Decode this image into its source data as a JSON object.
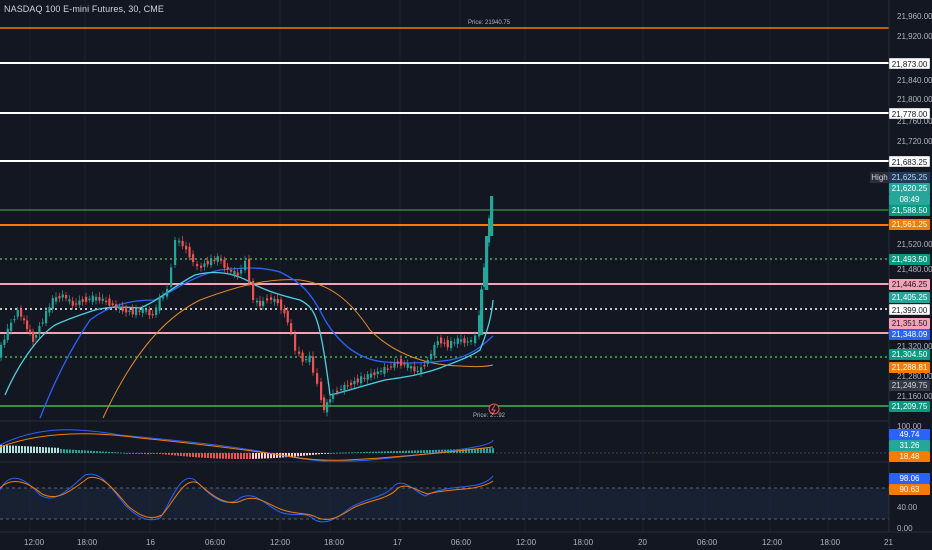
{
  "title": "NASDAQ 100 E-mini Futures, 30, CME",
  "price_axis_labels": [
    "21,960.00",
    "21,920.00",
    "21,840.00",
    "21,800.00",
    "21,760.00",
    "21,720.00",
    "21,520.00",
    "21,480.00",
    "21,320.00",
    "21,280.00",
    "21,160.00"
  ],
  "price_tags": {
    "t21873": "21,873.00",
    "t21778": "21,778.00",
    "t21683": "21,683.25",
    "high": "High",
    "t21625": "21,625.25",
    "t21620": "21,620.25",
    "countdown": "08:49",
    "t21588": "21,588.50",
    "t21561": "21,561.25",
    "t21493": "21,493.50",
    "t21446": "21,446.25",
    "t21405": "21,405.25",
    "t21399": "21,399.00",
    "t21351": "21,351.50",
    "t21348": "21,348.09",
    "t21304": "21,304.50",
    "t21288": "21,288.81",
    "t21249": "21,249.75",
    "t21209": "21,209.75"
  },
  "price_notes": {
    "top": "Price: 21940.75",
    "bottom": "Price: 2...92"
  },
  "macd_labels": {
    "max": "100.00",
    "v1": "49.74",
    "v2": "31.26",
    "v3": "18.48"
  },
  "stoch_labels": {
    "v1": "98.06",
    "v2": "90.63",
    "mid": "40.00",
    "zero": "0.00"
  },
  "time_axis": [
    "12:00",
    "18:00",
    "16",
    "06:00",
    "12:00",
    "18:00",
    "17",
    "06:00",
    "12:00",
    "18:00",
    "20",
    "06:00",
    "12:00",
    "18:00",
    "21"
  ],
  "colors": {
    "background": "#131722",
    "up": "#26a69a",
    "down": "#ef5350",
    "level_white": "#ffffff",
    "level_orange": "#f57c00",
    "level_green": "#4caf50",
    "level_pink": "#f7a1b7",
    "ma_blue": "#2962ff",
    "ma_teal": "#4dd0e1",
    "ma_orange": "#e08a2c"
  }
}
